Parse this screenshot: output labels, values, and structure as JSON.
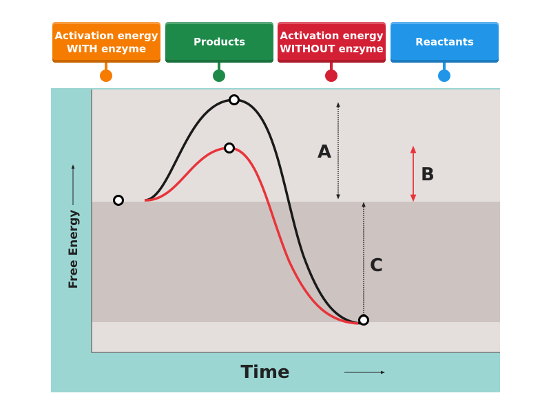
{
  "labels": [
    {
      "text": "Activation energy WITH enzyme",
      "line1": "Activation energy",
      "line2": "WITH enzyme",
      "color": "#f57c00"
    },
    {
      "text": "Products",
      "color": "#1e8a4a"
    },
    {
      "text": "Activation energy WITHOUT enzyme",
      "line1": "Activation energy",
      "line2": "WITHOUT enzyme",
      "color": "#d42035"
    },
    {
      "text": "Reactants",
      "color": "#2196e8"
    }
  ],
  "diagram": {
    "y_axis_label": "Free Energy",
    "x_axis_label": "Time",
    "letter_a": "A",
    "letter_b": "B",
    "letter_c": "C",
    "colors": {
      "frame": "#9bd6d3",
      "background": "#e4dfdd",
      "band": "#cdc4c2",
      "uncatalyzed": "#1a1a1a",
      "catalyzed": "#e8343a"
    }
  }
}
